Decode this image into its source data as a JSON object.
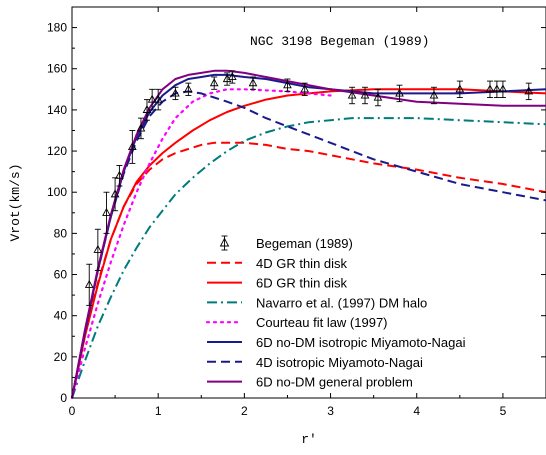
{
  "chart_data": {
    "type": "line",
    "title": "",
    "annotation": "NGC 3198 Begeman (1989)",
    "xlabel": "r'",
    "ylabel": "Vrot(km/s)",
    "xlim": [
      0,
      5.5
    ],
    "ylim": [
      0,
      190
    ],
    "x_ticks": [
      0,
      1,
      2,
      3,
      4,
      5
    ],
    "y_ticks": [
      0,
      20,
      40,
      60,
      80,
      100,
      120,
      140,
      160,
      180
    ],
    "x_tick_labels": [
      "0",
      "1",
      "2",
      "3",
      "4",
      "5"
    ],
    "y_tick_labels": [
      "0",
      "20",
      "40",
      "60",
      "80",
      "100",
      "120",
      "140",
      "160",
      "180"
    ],
    "grid": false,
    "legend_position": "center",
    "observations": {
      "name": "Begeman (1989)",
      "x": [
        0.2,
        0.3,
        0.4,
        0.5,
        0.55,
        0.7,
        0.8,
        0.87,
        0.93,
        1.0,
        1.2,
        1.35,
        1.65,
        1.8,
        1.86,
        2.1,
        2.5,
        2.7,
        3.25,
        3.4,
        3.55,
        3.8,
        4.2,
        4.5,
        4.85,
        4.93,
        5.0,
        5.3
      ],
      "y": [
        55,
        72,
        90,
        99,
        108,
        122,
        131,
        140,
        145,
        145,
        148,
        150,
        153,
        155,
        156,
        153,
        152,
        150,
        147,
        147,
        146,
        148,
        147,
        150,
        150,
        150,
        150,
        149
      ],
      "err": [
        10,
        10,
        10,
        8,
        5,
        8,
        5,
        5,
        5,
        5,
        3,
        3,
        3,
        3,
        3,
        3,
        3,
        3,
        4,
        4,
        4,
        4,
        4,
        4,
        4,
        4,
        4,
        4
      ]
    },
    "series": [
      {
        "name": "4D GR thin disk",
        "color": "#ff0000",
        "dash": "dashed",
        "x": [
          0,
          0.15,
          0.3,
          0.45,
          0.6,
          0.75,
          0.9,
          1.05,
          1.2,
          1.35,
          1.5,
          1.65,
          1.8,
          2.0,
          2.25,
          2.5,
          2.75,
          3.0,
          3.5,
          4.0,
          4.5,
          5.0,
          5.5
        ],
        "y": [
          0,
          30,
          56,
          77,
          93,
          104,
          111,
          116,
          119,
          121,
          123,
          124,
          124,
          124,
          123,
          121,
          120,
          118,
          114,
          111,
          107,
          104,
          100
        ]
      },
      {
        "name": "6D GR thin disk",
        "color": "#ff0000",
        "dash": "solid",
        "x": [
          0,
          0.15,
          0.3,
          0.45,
          0.6,
          0.75,
          0.9,
          1.05,
          1.2,
          1.4,
          1.6,
          1.8,
          2.0,
          2.25,
          2.5,
          2.75,
          3.0,
          3.5,
          4.0,
          4.5,
          5.0,
          5.5
        ],
        "y": [
          0,
          30,
          55,
          77,
          93,
          105,
          113,
          119,
          124,
          130,
          135,
          139,
          142,
          145,
          147,
          148,
          149,
          150,
          150,
          150,
          149,
          148
        ]
      },
      {
        "name": "Navarro et al. (1997) DM halo",
        "color": "#007b7b",
        "dash": "dashdot",
        "x": [
          0,
          0.15,
          0.3,
          0.45,
          0.6,
          0.75,
          0.9,
          1.05,
          1.2,
          1.4,
          1.6,
          1.8,
          2.0,
          2.25,
          2.5,
          2.75,
          3.0,
          3.25,
          3.5,
          3.75,
          4.0,
          4.5,
          5.0,
          5.5
        ],
        "y": [
          0,
          18,
          35,
          49,
          62,
          73,
          83,
          91,
          99,
          107,
          114,
          120,
          125,
          129,
          132,
          134,
          135,
          136,
          136,
          136,
          136,
          135,
          134,
          133
        ]
      },
      {
        "name": "Courteau fit law (1997)",
        "color": "#ff00ff",
        "dash": "dotted",
        "x": [
          0,
          0.15,
          0.3,
          0.45,
          0.6,
          0.75,
          0.9,
          1.05,
          1.2,
          1.4,
          1.6,
          1.8,
          2.0,
          2.5,
          3.0
        ],
        "y": [
          0,
          24,
          46,
          66,
          84,
          100,
          114,
          126,
          136,
          144,
          148,
          150,
          150,
          149,
          147
        ]
      },
      {
        "name": "6D no-DM isotropic Miyamoto-Nagai",
        "color": "#1a1a8c",
        "dash": "solid",
        "x": [
          0,
          0.15,
          0.3,
          0.45,
          0.6,
          0.75,
          0.9,
          1.05,
          1.2,
          1.35,
          1.5,
          1.65,
          1.8,
          2.0,
          2.25,
          2.5,
          2.75,
          3.0,
          3.5,
          4.0,
          4.5,
          5.0,
          5.5
        ],
        "y": [
          0,
          32,
          62,
          88,
          110,
          127,
          139,
          147,
          152,
          155,
          156,
          157,
          157,
          156,
          155,
          153,
          151,
          150,
          148,
          148,
          148,
          149,
          150
        ]
      },
      {
        "name": "4D isotropic Miyamoto-Nagai",
        "color": "#1a1a8c",
        "dash": "dashed",
        "x": [
          0,
          0.15,
          0.3,
          0.45,
          0.6,
          0.75,
          0.9,
          1.05,
          1.2,
          1.35,
          1.5,
          1.65,
          1.8,
          2.0,
          2.25,
          2.5,
          2.75,
          3.0,
          3.25,
          3.5,
          3.75,
          4.0,
          4.5,
          5.0,
          5.5
        ],
        "y": [
          0,
          32,
          62,
          88,
          109,
          125,
          137,
          144,
          148,
          149,
          148,
          146,
          144,
          141,
          136,
          132,
          128,
          124,
          120,
          116,
          113,
          110,
          104,
          100,
          96
        ]
      },
      {
        "name": "6D no-DM general problem",
        "color": "#800080",
        "dash": "solid",
        "x": [
          0,
          0.15,
          0.3,
          0.45,
          0.6,
          0.75,
          0.9,
          1.05,
          1.2,
          1.35,
          1.5,
          1.65,
          1.8,
          2.0,
          2.25,
          2.5,
          2.75,
          3.0,
          3.5,
          4.0,
          4.5,
          5.0,
          5.5
        ],
        "y": [
          0,
          33,
          63,
          89,
          111,
          128,
          141,
          150,
          155,
          157,
          158,
          159,
          159,
          158,
          156,
          154,
          152,
          150,
          147,
          144,
          143,
          142,
          142
        ]
      }
    ]
  }
}
